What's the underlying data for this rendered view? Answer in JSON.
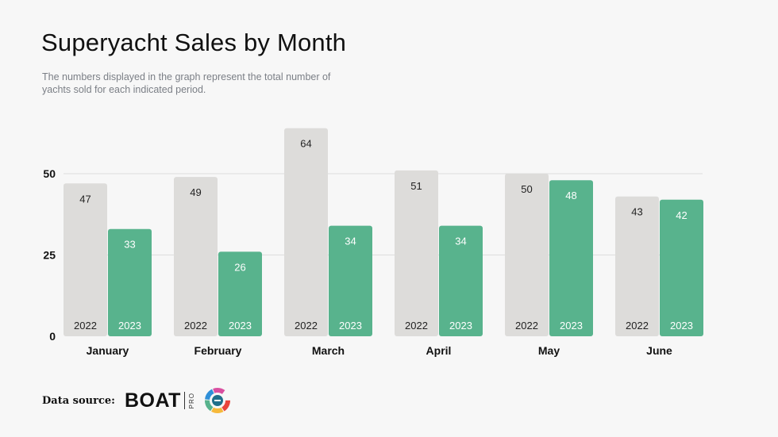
{
  "header": {
    "title": "Superyacht Sales by Month",
    "subtitle": "The numbers displayed in the graph represent the total number of yachts sold for each indicated period."
  },
  "footer": {
    "source_label": "Data source:",
    "brand": "BOAT",
    "brand_sub": "PRO"
  },
  "colors": {
    "series_2022": "#dddcda",
    "series_2023": "#58b38d",
    "label_dark": "#222222",
    "label_light": "#ffffff",
    "grid": "#dcdcdc",
    "axis_text": "#111111"
  },
  "chart_data": {
    "type": "bar",
    "title": "Superyacht Sales by Month",
    "categories": [
      "January",
      "February",
      "March",
      "April",
      "May",
      "June"
    ],
    "series": [
      {
        "name": "2022",
        "values": [
          47,
          49,
          64,
          51,
          50,
          43
        ]
      },
      {
        "name": "2023",
        "values": [
          33,
          26,
          34,
          34,
          48,
          42
        ]
      }
    ],
    "yticks": [
      0,
      25,
      50
    ],
    "ylim": [
      0,
      65
    ],
    "grid": true,
    "legend": "none"
  }
}
